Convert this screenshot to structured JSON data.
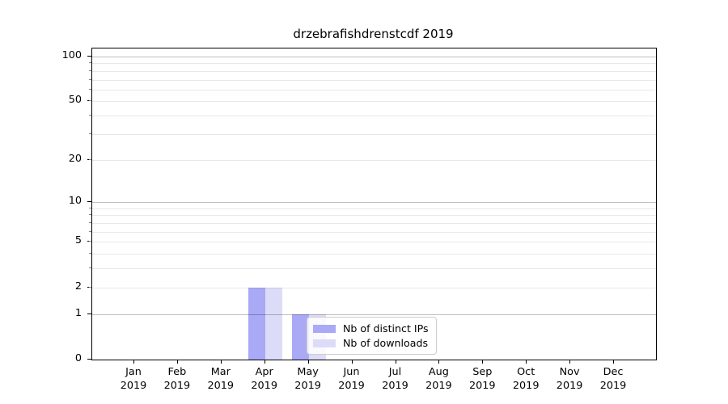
{
  "figure": {
    "title": "drzebrafishdrenstcdf 2019"
  },
  "chart_data": {
    "type": "bar",
    "title": "drzebrafishdrenstcdf 2019",
    "categories": [
      "Jan 2019",
      "Feb 2019",
      "Mar 2019",
      "Apr 2019",
      "May 2019",
      "Jun 2019",
      "Jul 2019",
      "Aug 2019",
      "Sep 2019",
      "Oct 2019",
      "Nov 2019",
      "Dec 2019"
    ],
    "series": [
      {
        "name": "Nb of distinct IPs",
        "color": "#a9a9f5",
        "values": [
          0,
          0,
          0,
          2,
          1,
          0,
          0,
          0,
          0,
          0,
          0,
          0
        ]
      },
      {
        "name": "Nb of downloads",
        "color": "#dcdcf8",
        "values": [
          0,
          0,
          0,
          2,
          1,
          0,
          0,
          0,
          0,
          0,
          0,
          0
        ]
      }
    ],
    "xlabel": "",
    "ylabel": "",
    "yscale": "log1p",
    "ylim": [
      0,
      113
    ],
    "y_tick_values": [
      0,
      1,
      2,
      5,
      10,
      20,
      50,
      100
    ],
    "y_tick_labels": [
      "0",
      "1",
      "2",
      "5",
      "10",
      "20",
      "50",
      "100"
    ],
    "grid": {
      "major_values": [
        1,
        10,
        100
      ],
      "minor_values": [
        2,
        3,
        4,
        5,
        6,
        7,
        8,
        9,
        20,
        30,
        40,
        50,
        60,
        70,
        80,
        90
      ]
    },
    "legend": {
      "position": "lower-center-right",
      "items": [
        "Nb of distinct IPs",
        "Nb of downloads"
      ]
    }
  },
  "colors": {
    "bar_distinct_ips": "#a9a9f5",
    "bar_downloads": "#dcdcf8",
    "major_grid": "rgba(0,0,0,0.25)",
    "minor_grid": "rgba(0,0,0,0.09)",
    "spine": "#000000",
    "legend_border": "#cccccc"
  }
}
